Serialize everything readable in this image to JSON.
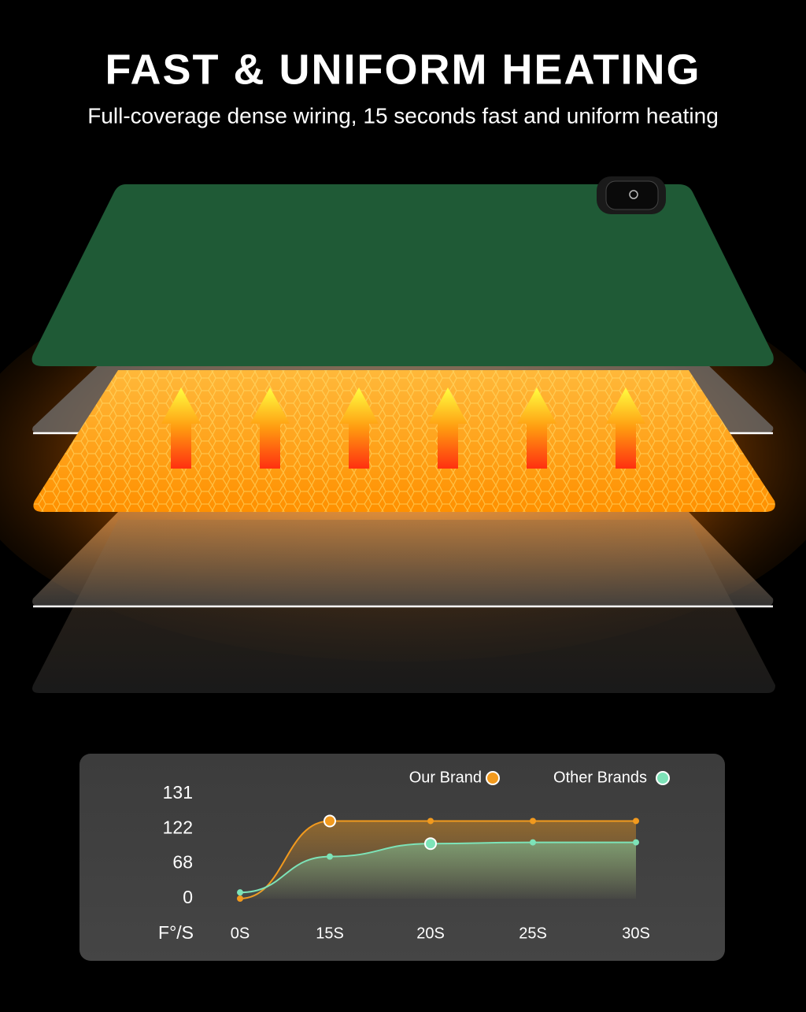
{
  "header": {
    "title": "FAST & UNIFORM HEATING",
    "subtitle": "Full-coverage dense wiring, 15 seconds fast and uniform heating"
  },
  "chart_data": {
    "type": "line",
    "y_axis_label": "F°/S",
    "categories": [
      "0S",
      "15S",
      "20S",
      "25S",
      "30S"
    ],
    "series": [
      {
        "name": "Our Brand",
        "color": "#f29a1e",
        "values": [
          0,
          124,
          124,
          124,
          124
        ]
      },
      {
        "name": "Other Brands",
        "color": "#7de3b8",
        "values": [
          12,
          79,
          99,
          101,
          101
        ]
      }
    ],
    "ylim": [
      0,
      131
    ],
    "yticks": [
      0,
      68,
      122,
      131
    ],
    "y_scale": "tick-spaced",
    "grid": false,
    "legend": "top"
  }
}
